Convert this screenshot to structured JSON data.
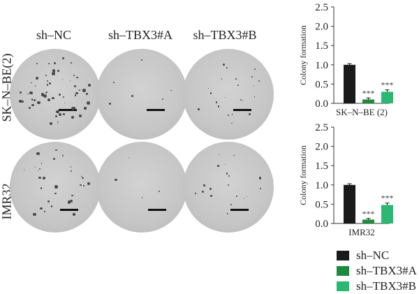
{
  "columns": [
    "sh–NC",
    "sh–TBX3#A",
    "sh–TBX3#B"
  ],
  "rows": [
    "SK–N–BE(2)",
    "IMR32"
  ],
  "legend": [
    {
      "label": "sh–NC",
      "color": "#1a1a1a"
    },
    {
      "label": "sh–TBX3#A",
      "color": "#1e8a3e"
    },
    {
      "label": "sh–TBX3#B",
      "color": "#2ab872"
    }
  ],
  "chart_data": [
    {
      "type": "bar",
      "categories": [
        "sh–NC",
        "sh–TBX3#A",
        "sh–TBX3#B"
      ],
      "values": [
        1.0,
        0.1,
        0.3
      ],
      "errors": [
        0.03,
        0.04,
        0.05
      ],
      "significance": [
        "",
        "***",
        "***"
      ],
      "xlabel": "SK–N–BE (2)",
      "ylabel": "Colony formation",
      "ylim": [
        0,
        2.5
      ],
      "yticks": [
        "0.0",
        "0.5",
        "1.0",
        "1.5",
        "2.0",
        "2.5"
      ]
    },
    {
      "type": "bar",
      "categories": [
        "sh–NC",
        "sh–TBX3#A",
        "sh–TBX3#B"
      ],
      "values": [
        1.0,
        0.1,
        0.48
      ],
      "errors": [
        0.03,
        0.03,
        0.05
      ],
      "significance": [
        "",
        "***",
        "***"
      ],
      "xlabel": "IMR32",
      "ylabel": "Colony formation",
      "ylim": [
        0,
        2.5
      ],
      "yticks": [
        "0.0",
        "0.5",
        "1.0",
        "1.5",
        "2.0",
        "2.5"
      ]
    }
  ]
}
